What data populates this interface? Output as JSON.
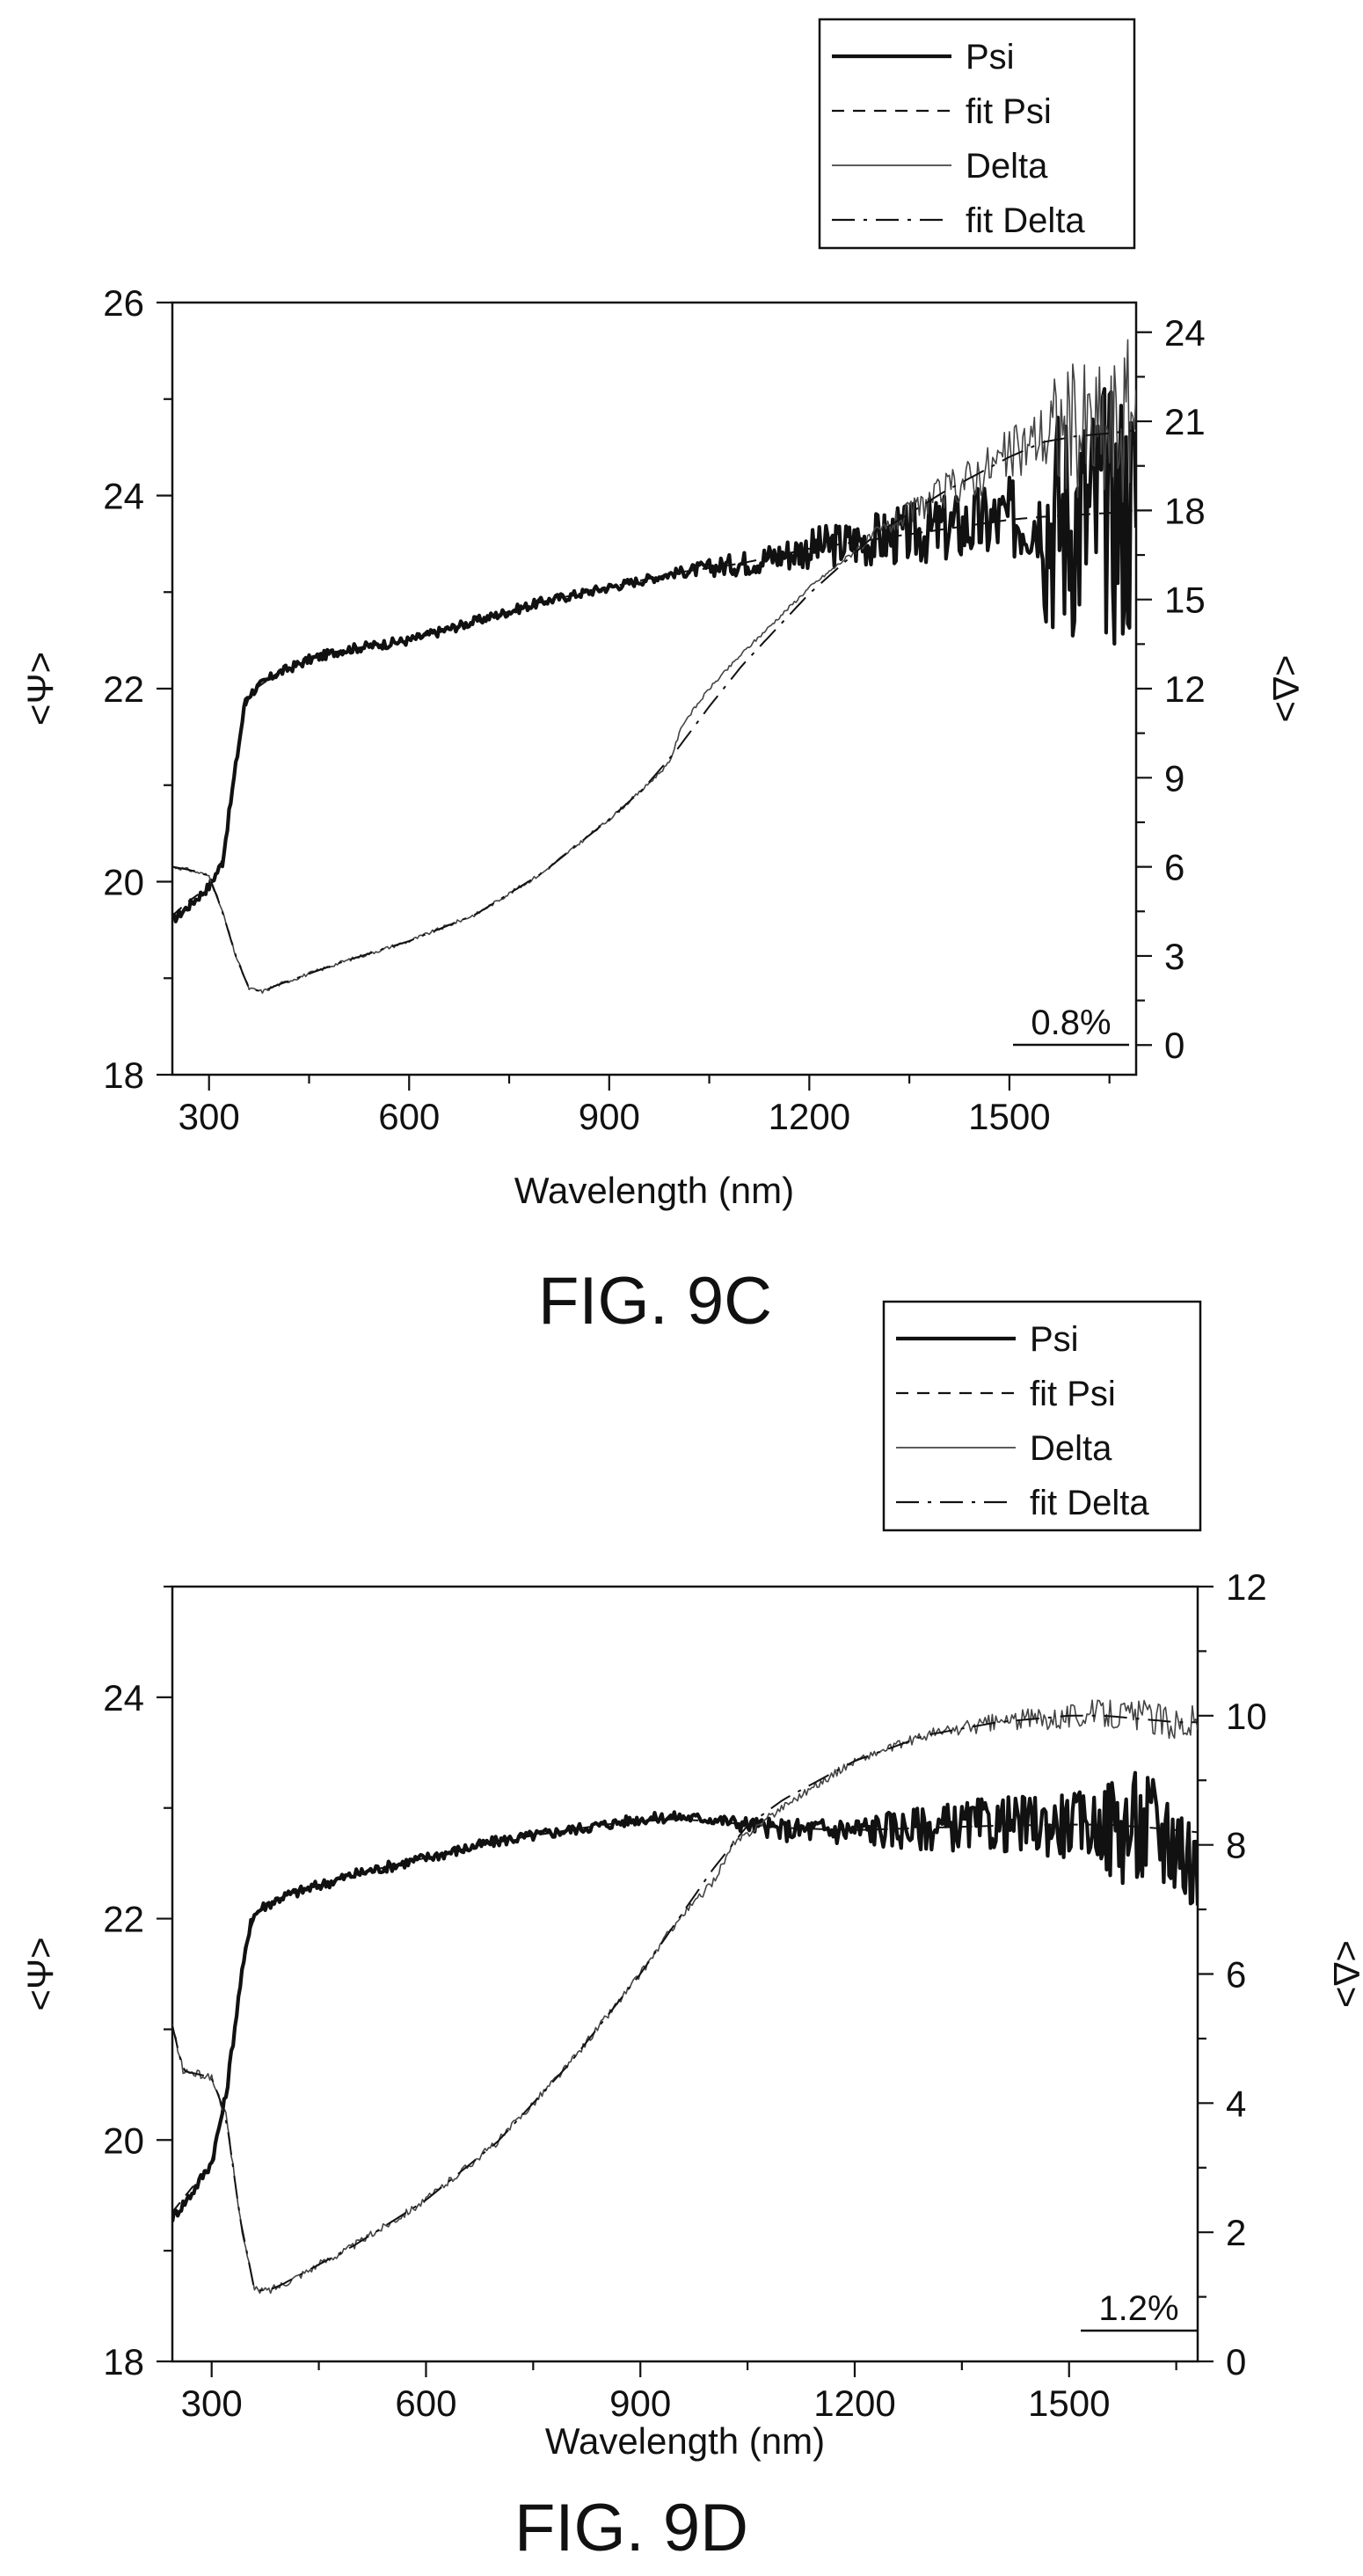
{
  "chart_data": [
    {
      "type": "line",
      "caption": "FIG. 9C",
      "xlabel": "Wavelength (nm)",
      "ylabel_left": "<Ψ>",
      "ylabel_right": "<Δ>",
      "xlim": [
        245,
        1690
      ],
      "ylim_left": [
        18,
        26
      ],
      "ylim_right": [
        -1,
        25
      ],
      "x_ticks": [
        300,
        600,
        900,
        1200,
        1500
      ],
      "y_ticks_left": [
        18,
        20,
        22,
        24,
        26
      ],
      "y_ticks_right": [
        0,
        3,
        6,
        9,
        12,
        15,
        18,
        21,
        24
      ],
      "annotation": "0.8%",
      "legend": [
        "Psi",
        "fit Psi",
        "Delta",
        "fit Delta"
      ],
      "series": [
        {
          "name": "Psi",
          "axis": "left",
          "style": "thick-noisy",
          "x": [
            245,
            270,
            300,
            320,
            340,
            355,
            370,
            400,
            450,
            500,
            600,
            700,
            800,
            900,
            1000,
            1100,
            1200,
            1250,
            1300,
            1350,
            1400,
            1450,
            1500,
            1550,
            1600,
            1650,
            1690
          ],
          "y": [
            19.6,
            19.75,
            19.95,
            20.2,
            21.2,
            21.9,
            22.0,
            22.15,
            22.3,
            22.4,
            22.5,
            22.7,
            22.9,
            23.05,
            23.2,
            23.3,
            23.45,
            23.5,
            23.55,
            23.6,
            23.65,
            23.7,
            23.75,
            23.8,
            23.8,
            23.85,
            23.9
          ]
        },
        {
          "name": "fit Psi",
          "axis": "left",
          "style": "dashed",
          "x": [
            245,
            270,
            300,
            320,
            340,
            355,
            370,
            400,
            450,
            500,
            600,
            700,
            800,
            900,
            1000,
            1100,
            1200,
            1250,
            1300,
            1350,
            1400,
            1450,
            1500,
            1550,
            1600,
            1650,
            1690
          ],
          "y": [
            19.65,
            19.8,
            19.95,
            20.2,
            21.2,
            21.85,
            22.0,
            22.15,
            22.3,
            22.4,
            22.5,
            22.7,
            22.9,
            23.05,
            23.2,
            23.3,
            23.45,
            23.5,
            23.55,
            23.6,
            23.65,
            23.7,
            23.75,
            23.78,
            23.8,
            23.82,
            23.85
          ]
        },
        {
          "name": "Delta",
          "axis": "right",
          "style": "thin-noisy",
          "x": [
            245,
            270,
            300,
            320,
            340,
            360,
            380,
            400,
            450,
            500,
            600,
            700,
            800,
            900,
            950,
            990,
            1010,
            1050,
            1100,
            1200,
            1300,
            1400,
            1500,
            1550,
            1600,
            1650,
            1690
          ],
          "y": [
            6.0,
            5.9,
            5.7,
            4.5,
            3.0,
            1.9,
            1.8,
            2.0,
            2.4,
            2.8,
            3.5,
            4.4,
            5.8,
            7.6,
            8.6,
            9.5,
            10.8,
            12.0,
            13.2,
            15.4,
            17.2,
            18.6,
            19.8,
            20.6,
            20.8,
            20.5,
            21.5
          ]
        },
        {
          "name": "fit Delta",
          "axis": "right",
          "style": "dash-dot",
          "x": [
            245,
            270,
            300,
            320,
            340,
            360,
            380,
            400,
            450,
            500,
            600,
            700,
            800,
            900,
            950,
            1000,
            1050,
            1100,
            1200,
            1300,
            1400,
            1500,
            1550,
            1600,
            1650,
            1690
          ],
          "y": [
            6.0,
            5.9,
            5.7,
            4.5,
            3.0,
            1.9,
            1.8,
            2.0,
            2.4,
            2.8,
            3.5,
            4.4,
            5.8,
            7.6,
            8.6,
            9.9,
            11.4,
            12.8,
            15.2,
            17.2,
            18.6,
            19.8,
            20.3,
            20.5,
            20.6,
            20.7
          ]
        }
      ]
    },
    {
      "type": "line",
      "caption": "FIG. 9D",
      "xlabel": "Wavelength (nm)",
      "ylabel_left": "<Ψ>",
      "ylabel_right": "<Δ>",
      "xlim": [
        245,
        1680
      ],
      "ylim_left": [
        18,
        25
      ],
      "ylim_right": [
        0,
        12
      ],
      "x_ticks": [
        300,
        600,
        900,
        1200,
        1500
      ],
      "y_ticks_left": [
        18,
        20,
        22,
        24
      ],
      "y_ticks_right": [
        0,
        2,
        4,
        6,
        8,
        10,
        12
      ],
      "annotation": "1.2%",
      "legend": [
        "Psi",
        "fit Psi",
        "Delta",
        "fit Delta"
      ],
      "series": [
        {
          "name": "Psi",
          "axis": "left",
          "style": "thick-noisy",
          "x": [
            245,
            270,
            300,
            320,
            340,
            355,
            370,
            400,
            450,
            500,
            600,
            700,
            800,
            850,
            900,
            950,
            1000,
            1050,
            1100,
            1200,
            1300,
            1400,
            1500,
            1550,
            1600,
            1650,
            1680
          ],
          "y": [
            19.3,
            19.5,
            19.8,
            20.4,
            21.4,
            22.0,
            22.1,
            22.2,
            22.3,
            22.4,
            22.55,
            22.7,
            22.8,
            22.85,
            22.9,
            22.92,
            22.9,
            22.85,
            22.8,
            22.8,
            22.82,
            22.85,
            22.85,
            22.85,
            22.8,
            22.75,
            22.4
          ]
        },
        {
          "name": "fit Psi",
          "axis": "left",
          "style": "dashed",
          "x": [
            245,
            270,
            300,
            320,
            340,
            355,
            370,
            400,
            450,
            500,
            600,
            700,
            800,
            850,
            900,
            950,
            1000,
            1050,
            1100,
            1200,
            1300,
            1400,
            1500,
            1550,
            1600,
            1650,
            1680
          ],
          "y": [
            19.35,
            19.55,
            19.8,
            20.4,
            21.4,
            21.95,
            22.1,
            22.2,
            22.3,
            22.4,
            22.55,
            22.7,
            22.8,
            22.85,
            22.88,
            22.9,
            22.88,
            22.85,
            22.82,
            22.8,
            22.82,
            22.84,
            22.85,
            22.85,
            22.83,
            22.8,
            22.78
          ]
        },
        {
          "name": "Delta",
          "axis": "right",
          "style": "thin-noisy",
          "x": [
            245,
            260,
            300,
            320,
            340,
            360,
            380,
            400,
            450,
            500,
            600,
            700,
            800,
            900,
            950,
            1000,
            1030,
            1100,
            1200,
            1300,
            1400,
            1500,
            1550,
            1600,
            1650,
            1680
          ],
          "y": [
            5.2,
            4.5,
            4.4,
            3.8,
            2.2,
            1.1,
            1.1,
            1.2,
            1.5,
            1.8,
            2.5,
            3.4,
            4.6,
            6.0,
            6.8,
            7.4,
            8.0,
            8.6,
            9.3,
            9.7,
            9.9,
            10.0,
            10.05,
            10.0,
            9.9,
            9.9
          ]
        },
        {
          "name": "fit Delta",
          "axis": "right",
          "style": "dash-dot",
          "x": [
            245,
            260,
            300,
            320,
            340,
            360,
            380,
            400,
            450,
            500,
            600,
            700,
            800,
            900,
            950,
            1000,
            1050,
            1100,
            1200,
            1300,
            1400,
            1500,
            1550,
            1600,
            1650,
            1680
          ],
          "y": [
            5.2,
            4.5,
            4.4,
            3.8,
            2.2,
            1.1,
            1.1,
            1.2,
            1.5,
            1.8,
            2.5,
            3.4,
            4.6,
            6.0,
            6.8,
            7.6,
            8.3,
            8.7,
            9.3,
            9.7,
            9.9,
            10.0,
            10.0,
            9.95,
            9.9,
            9.9
          ]
        }
      ]
    }
  ]
}
